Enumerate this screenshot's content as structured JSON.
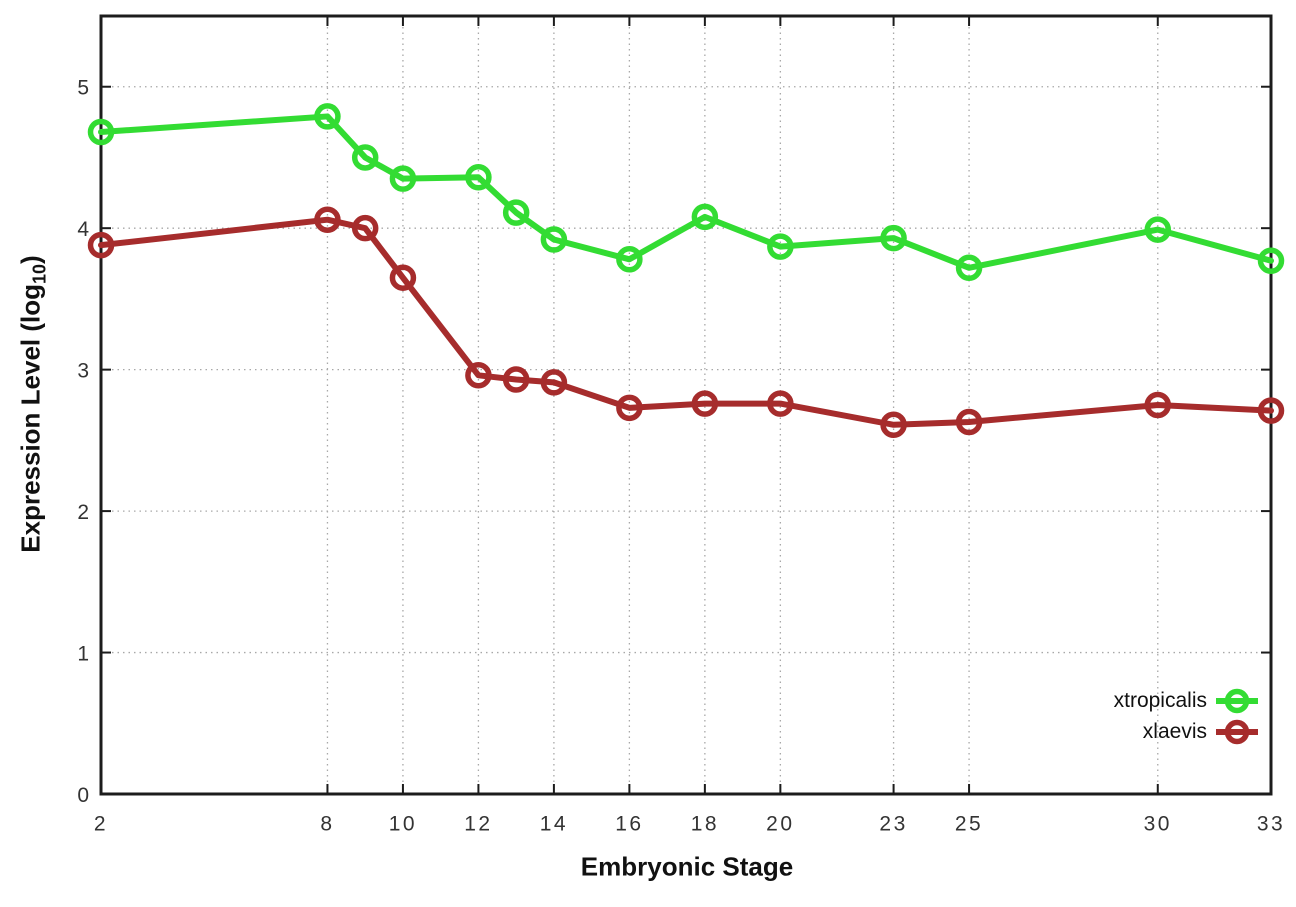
{
  "chart_data": {
    "type": "line",
    "title": "",
    "xlabel": "Embryonic Stage",
    "ylabel": "Expression Level (log10)",
    "ylabel_parts": {
      "main": "Expression Level (log",
      "sub": "10",
      "close": ")"
    },
    "x": [
      2,
      8,
      9,
      10,
      12,
      13,
      14,
      16,
      18,
      20,
      23,
      25,
      30,
      33
    ],
    "series": [
      {
        "name": "xtropicalis",
        "color": "#33DC33",
        "values": [
          4.68,
          4.79,
          4.5,
          4.35,
          4.36,
          4.11,
          3.92,
          3.78,
          4.08,
          3.87,
          3.93,
          3.72,
          3.99,
          3.77
        ]
      },
      {
        "name": "xlaevis",
        "color": "#A62C2C",
        "values": [
          3.88,
          4.06,
          4.0,
          3.65,
          2.96,
          2.93,
          2.91,
          2.73,
          2.76,
          2.76,
          2.61,
          2.63,
          2.75,
          2.71
        ]
      }
    ],
    "xlim": [
      2,
      33
    ],
    "ylim": [
      0,
      5.5
    ],
    "xticks": [
      2,
      8,
      10,
      12,
      14,
      16,
      18,
      20,
      23,
      25,
      30,
      33
    ],
    "xtick_labels": [
      "2",
      "8",
      "10",
      "12",
      "14",
      "16",
      "18",
      "20",
      "23",
      "25",
      "30",
      "33"
    ],
    "yticks": [
      0,
      1,
      2,
      3,
      4,
      5
    ],
    "ytick_labels": [
      "0",
      "1",
      "2",
      "3",
      "4",
      "5"
    ],
    "grid": true,
    "legend_position": "inside-bottom-right",
    "colors": {
      "axis": "#1c1c1c",
      "grid": "#a8a8a8",
      "tick_text": "#333333"
    }
  }
}
